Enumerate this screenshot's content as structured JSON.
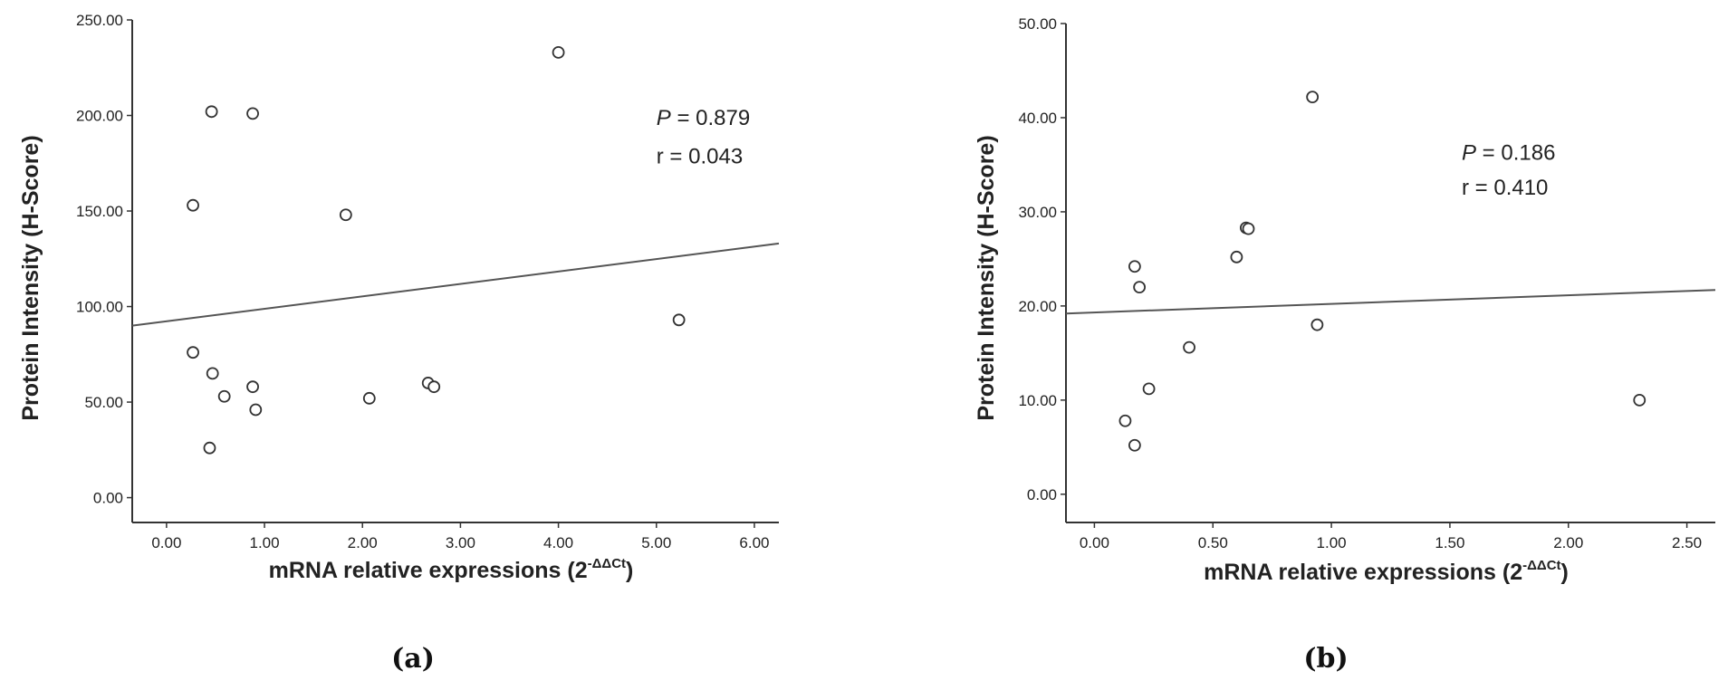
{
  "chart_data": [
    {
      "type": "scatter",
      "panel_label": "(a)",
      "xlabel": "mRNA relative expressions (2",
      "xlabel_superscript": "-ΔΔCt",
      "xlabel_suffix": ")",
      "ylabel": "Protein Intensity (H-Score)",
      "xlim": [
        -0.35,
        6.25
      ],
      "ylim": [
        -13,
        250
      ],
      "xticks": [
        0,
        1,
        2,
        3,
        4,
        5,
        6
      ],
      "xtick_labels": [
        "0.00",
        "1.00",
        "2.00",
        "3.00",
        "4.00",
        "5.00",
        "6.00"
      ],
      "yticks": [
        0,
        50,
        100,
        150,
        200,
        250
      ],
      "ytick_labels": [
        "0.00",
        "50.00",
        "100.00",
        "150.00",
        "200.00",
        "250.00"
      ],
      "points": [
        {
          "x": 0.27,
          "y": 153
        },
        {
          "x": 0.27,
          "y": 76
        },
        {
          "x": 0.46,
          "y": 202
        },
        {
          "x": 0.47,
          "y": 65
        },
        {
          "x": 0.59,
          "y": 53
        },
        {
          "x": 0.44,
          "y": 26
        },
        {
          "x": 0.88,
          "y": 201
        },
        {
          "x": 0.88,
          "y": 58
        },
        {
          "x": 0.91,
          "y": 46
        },
        {
          "x": 1.83,
          "y": 148
        },
        {
          "x": 2.07,
          "y": 52
        },
        {
          "x": 2.67,
          "y": 60
        },
        {
          "x": 2.73,
          "y": 58
        },
        {
          "x": 4.0,
          "y": 233
        },
        {
          "x": 5.23,
          "y": 93
        }
      ],
      "fit_line": {
        "x": [
          -0.35,
          6.25
        ],
        "y": [
          90,
          133
        ]
      },
      "annotation": {
        "p_symbol": "P",
        "p_text": " = 0.879",
        "r_text": "r = 0.043",
        "x": 5.0,
        "y_p": 195,
        "y_r": 175
      }
    },
    {
      "type": "scatter",
      "panel_label": "(b)",
      "xlabel": "mRNA relative expressions (2",
      "xlabel_superscript": "-ΔΔCt",
      "xlabel_suffix": ")",
      "ylabel": "Protein Intensity (H-Score)",
      "xlim": [
        -0.12,
        2.62
      ],
      "ylim": [
        -3,
        50
      ],
      "xticks": [
        0,
        0.5,
        1.0,
        1.5,
        2.0,
        2.5
      ],
      "xtick_labels": [
        "0.00",
        "0.50",
        "1.00",
        "1.50",
        "2.00",
        "2.50"
      ],
      "yticks": [
        0,
        10,
        20,
        30,
        40,
        50
      ],
      "ytick_labels": [
        "0.00",
        "10.00",
        "20.00",
        "30.00",
        "40.00",
        "50.00"
      ],
      "points": [
        {
          "x": 0.13,
          "y": 7.8
        },
        {
          "x": 0.17,
          "y": 24.2
        },
        {
          "x": 0.19,
          "y": 22.0
        },
        {
          "x": 0.17,
          "y": 5.2
        },
        {
          "x": 0.23,
          "y": 11.2
        },
        {
          "x": 0.4,
          "y": 15.6
        },
        {
          "x": 0.6,
          "y": 25.2
        },
        {
          "x": 0.64,
          "y": 28.3
        },
        {
          "x": 0.65,
          "y": 28.2
        },
        {
          "x": 0.92,
          "y": 42.2
        },
        {
          "x": 0.94,
          "y": 18.0
        },
        {
          "x": 2.3,
          "y": 10.0
        }
      ],
      "fit_line": {
        "x": [
          -0.12,
          2.62
        ],
        "y": [
          19.2,
          21.7
        ]
      },
      "annotation": {
        "p_symbol": "P",
        "p_text": " = 0.186",
        "r_text": "r = 0.410",
        "x": 1.55,
        "y_p": 35.5,
        "y_r": 31.8
      }
    }
  ]
}
